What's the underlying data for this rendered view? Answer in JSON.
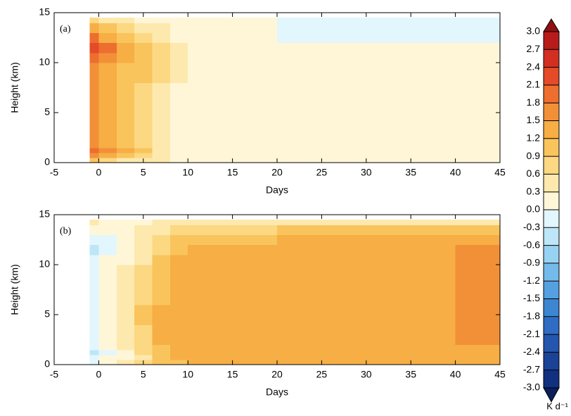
{
  "chart_data": [
    {
      "type": "contour",
      "panel_label": "(a)",
      "xlabel": "Days",
      "ylabel": "Height (km)",
      "xlim": [
        -5,
        45
      ],
      "ylim": [
        0,
        15
      ],
      "xticks": [
        -5,
        0,
        5,
        10,
        15,
        20,
        25,
        30,
        35,
        40,
        45
      ],
      "yticks": [
        0,
        5,
        10,
        15
      ],
      "x_edges": [
        -1,
        0,
        2,
        4,
        6,
        8,
        10,
        15,
        20,
        25,
        30,
        35,
        40,
        45
      ],
      "y_edges": [
        0,
        0.5,
        1,
        1.5,
        2,
        4,
        6,
        8,
        10,
        11,
        12,
        13,
        14,
        14.5
      ],
      "z": [
        [
          1.0,
          0.7,
          0.5,
          0.4,
          0.3,
          0.1,
          0.1,
          0.1,
          0.1,
          0.1,
          0.1,
          0.1,
          0.1
        ],
        [
          1.6,
          1.3,
          1.0,
          0.7,
          0.4,
          0.1,
          0.1,
          0.1,
          0.1,
          0.1,
          0.1,
          0.1,
          0.1
        ],
        [
          2.0,
          1.6,
          1.2,
          0.9,
          0.5,
          0.2,
          0.1,
          0.1,
          0.1,
          0.1,
          0.1,
          0.1,
          0.1
        ],
        [
          1.7,
          1.4,
          1.1,
          0.8,
          0.5,
          0.2,
          0.1,
          0.1,
          0.1,
          0.1,
          0.1,
          0.1,
          0.1
        ],
        [
          1.6,
          1.4,
          1.1,
          0.8,
          0.5,
          0.2,
          0.1,
          0.1,
          0.1,
          0.1,
          0.1,
          0.1,
          0.1
        ],
        [
          1.6,
          1.4,
          1.1,
          0.8,
          0.5,
          0.2,
          0.1,
          0.1,
          0.1,
          0.1,
          0.1,
          0.1,
          0.1
        ],
        [
          1.6,
          1.3,
          1.0,
          0.8,
          0.5,
          0.2,
          0.1,
          0.1,
          0.1,
          0.1,
          0.1,
          0.1,
          0.1
        ],
        [
          1.7,
          1.4,
          1.1,
          0.9,
          0.6,
          0.3,
          0.1,
          0.1,
          0.1,
          0.1,
          0.1,
          0.1,
          0.1
        ],
        [
          1.9,
          1.6,
          1.2,
          0.9,
          0.7,
          0.3,
          0.1,
          0.1,
          0.1,
          0.1,
          0.1,
          0.1,
          0.1
        ],
        [
          2.2,
          1.8,
          1.3,
          1.0,
          0.7,
          0.4,
          0.1,
          0.1,
          0.1,
          0.1,
          0.1,
          0.1,
          0.1
        ],
        [
          1.8,
          1.4,
          1.1,
          0.8,
          0.5,
          0.2,
          0.1,
          0.1,
          -0.1,
          -0.1,
          -0.1,
          -0.1,
          -0.1
        ],
        [
          1.2,
          0.9,
          0.7,
          0.5,
          0.3,
          0.1,
          0.1,
          0.1,
          -0.1,
          -0.1,
          -0.1,
          -0.1,
          -0.1
        ],
        [
          0.7,
          0.5,
          0.3,
          0.2,
          0.1,
          0.1,
          0.1,
          0.1,
          -0.1,
          -0.1,
          -0.1,
          -0.1,
          -0.1
        ]
      ]
    },
    {
      "type": "contour",
      "panel_label": "(b)",
      "xlabel": "Days",
      "ylabel": "Height (km)",
      "xlim": [
        -5,
        45
      ],
      "ylim": [
        0,
        15
      ],
      "xticks": [
        -5,
        0,
        5,
        10,
        15,
        20,
        25,
        30,
        35,
        40,
        45
      ],
      "yticks": [
        0,
        5,
        10,
        15
      ],
      "x_edges": [
        -1,
        0,
        2,
        4,
        6,
        8,
        10,
        15,
        20,
        25,
        30,
        35,
        40,
        45
      ],
      "y_edges": [
        0,
        0.5,
        1,
        1.5,
        2,
        4,
        6,
        8,
        10,
        11,
        12,
        13,
        14,
        14.5
      ],
      "z": [
        [
          -0.1,
          0.1,
          0.3,
          0.6,
          0.9,
          1.1,
          1.3,
          1.3,
          1.3,
          1.3,
          1.3,
          1.3,
          1.3
        ],
        [
          -0.2,
          0.1,
          0.2,
          0.5,
          1.0,
          1.3,
          1.3,
          1.3,
          1.3,
          1.3,
          1.3,
          1.3,
          1.3
        ],
        [
          -0.4,
          -0.1,
          0.2,
          0.6,
          1.1,
          1.3,
          1.3,
          1.3,
          1.3,
          1.3,
          1.3,
          1.3,
          1.3
        ],
        [
          -0.2,
          0.1,
          0.3,
          0.7,
          1.1,
          1.3,
          1.3,
          1.3,
          1.3,
          1.3,
          1.3,
          1.3,
          1.4
        ],
        [
          -0.1,
          0.1,
          0.4,
          0.8,
          1.2,
          1.3,
          1.3,
          1.3,
          1.3,
          1.3,
          1.3,
          1.3,
          1.6
        ],
        [
          -0.1,
          0.2,
          0.5,
          0.9,
          1.2,
          1.3,
          1.3,
          1.3,
          1.3,
          1.3,
          1.3,
          1.3,
          1.6
        ],
        [
          -0.1,
          0.1,
          0.4,
          0.7,
          1.1,
          1.3,
          1.3,
          1.3,
          1.3,
          1.3,
          1.3,
          1.3,
          1.6
        ],
        [
          -0.1,
          0.1,
          0.3,
          0.6,
          1.0,
          1.3,
          1.3,
          1.3,
          1.3,
          1.3,
          1.3,
          1.3,
          1.6
        ],
        [
          -0.1,
          0.1,
          0.2,
          0.5,
          0.9,
          1.2,
          1.3,
          1.3,
          1.3,
          1.3,
          1.3,
          1.3,
          1.6
        ],
        [
          -0.4,
          -0.1,
          0.2,
          0.4,
          0.8,
          1.1,
          1.3,
          1.3,
          1.3,
          1.3,
          1.3,
          1.3,
          1.6
        ],
        [
          -0.1,
          -0.1,
          0.1,
          0.4,
          0.6,
          0.9,
          1.0,
          1.1,
          1.2,
          1.2,
          1.2,
          1.3,
          1.3
        ],
        [
          0.1,
          0.1,
          0.2,
          0.3,
          0.5,
          0.7,
          0.8,
          0.8,
          0.9,
          0.9,
          0.9,
          0.9,
          0.9
        ],
        [
          0.5,
          0.2,
          0.1,
          0.2,
          0.3,
          0.4,
          0.4,
          0.4,
          0.5,
          0.5,
          0.5,
          0.5,
          0.5
        ]
      ]
    }
  ],
  "colorbar": {
    "label": "K d⁻¹",
    "ticks": [
      {
        "value": -3,
        "label": "-3.0"
      },
      -2.7,
      -2.4,
      -2.1,
      -1.8,
      -1.5,
      -1.2,
      -0.9,
      -0.6,
      -0.3,
      {
        "value": 0,
        "label": "0.0"
      },
      0.3,
      0.6,
      0.9,
      1.2,
      1.5,
      1.8,
      2.1,
      2.4,
      2.7,
      {
        "value": 3,
        "label": "3.0"
      }
    ],
    "colors": [
      "#0a1f5c",
      "#123080",
      "#1a4297",
      "#2456ae",
      "#2f6cc4",
      "#3d86d2",
      "#55a0e0",
      "#74bbec",
      "#98d2f3",
      "#bde6f8",
      "#e2f6fd",
      "#fff6d8",
      "#fde9ad",
      "#fcd882",
      "#f9c45c",
      "#f6ae45",
      "#f29038",
      "#ed6e2e",
      "#e44b28",
      "#d32e22",
      "#b81c1a",
      "#8e1010"
    ]
  }
}
